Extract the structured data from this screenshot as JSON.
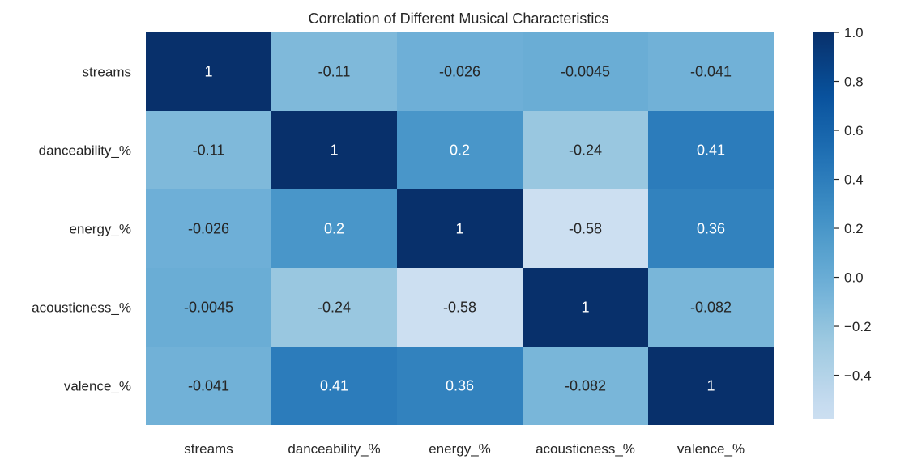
{
  "chart_data": {
    "type": "heatmap",
    "title": "Correlation of Different Musical Characteristics",
    "xlabel": "",
    "ylabel": "",
    "x_categories": [
      "streams",
      "danceability_%",
      "energy_%",
      "acousticness_%",
      "valence_%"
    ],
    "y_categories": [
      "streams",
      "danceability_%",
      "energy_%",
      "acousticness_%",
      "valence_%"
    ],
    "values": [
      [
        1,
        -0.11,
        -0.026,
        -0.0045,
        -0.041
      ],
      [
        -0.11,
        1,
        0.2,
        -0.24,
        0.41
      ],
      [
        -0.026,
        0.2,
        1,
        -0.58,
        0.36
      ],
      [
        -0.0045,
        -0.24,
        -0.58,
        1,
        -0.082
      ],
      [
        -0.041,
        0.41,
        0.36,
        -0.082,
        1
      ]
    ],
    "cell_labels": [
      [
        "1",
        "-0.11",
        "-0.026",
        "-0.0045",
        "-0.041"
      ],
      [
        "-0.11",
        "1",
        "0.2",
        "-0.24",
        "0.41"
      ],
      [
        "-0.026",
        "0.2",
        "1",
        "-0.58",
        "0.36"
      ],
      [
        "-0.0045",
        "-0.24",
        "-0.58",
        "1",
        "-0.082"
      ],
      [
        "-0.041",
        "0.41",
        "0.36",
        "-0.082",
        "1"
      ]
    ],
    "colormap": "Blues",
    "colormap_stops": [
      "#f7fbff",
      "#deebf7",
      "#c6dbef",
      "#9ecae1",
      "#6baed6",
      "#4292c6",
      "#2171b5",
      "#08519c",
      "#08306b"
    ],
    "vmin": -0.58,
    "vmax": 1.0,
    "colorbar": {
      "ticks": [
        1.0,
        0.8,
        0.6,
        0.4,
        0.2,
        0.0,
        -0.2,
        -0.4
      ],
      "tick_labels": [
        "1.0",
        "0.8",
        "0.6",
        "0.4",
        "0.2",
        "0.0",
        "−0.2",
        "−0.4"
      ]
    },
    "grid": false,
    "legend": "colorbar-right"
  }
}
